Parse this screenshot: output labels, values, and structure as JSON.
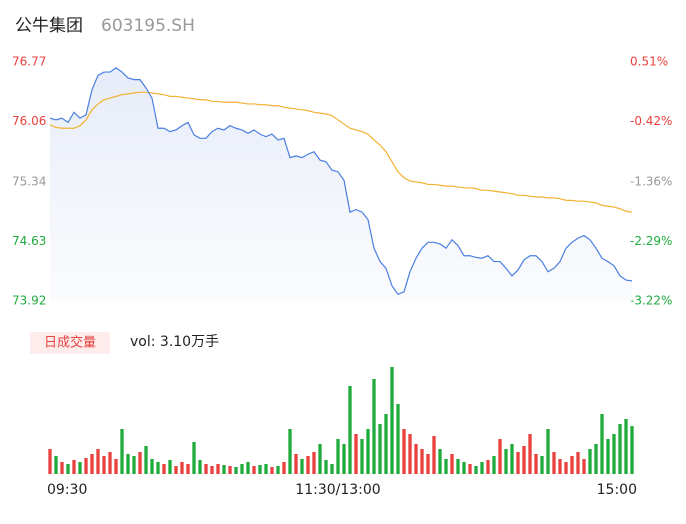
{
  "chart_data": {
    "type": "intraday",
    "title": "公牛集团",
    "subtitle": "603195.SH",
    "price": {
      "name": "price",
      "color": "#4a7fe0",
      "values": [
        76.1,
        76.08,
        76.1,
        76.05,
        76.17,
        76.1,
        76.14,
        76.44,
        76.61,
        76.65,
        76.65,
        76.7,
        76.65,
        76.58,
        76.56,
        76.56,
        76.46,
        76.34,
        75.98,
        75.98,
        75.94,
        75.96,
        76.01,
        76.05,
        75.9,
        75.86,
        75.86,
        75.94,
        75.98,
        75.96,
        76.01,
        75.98,
        75.96,
        75.92,
        75.96,
        75.91,
        75.88,
        75.91,
        75.84,
        75.86,
        75.63,
        75.65,
        75.63,
        75.67,
        75.7,
        75.6,
        75.58,
        75.48,
        75.46,
        75.36,
        74.98,
        75.01,
        74.98,
        74.89,
        74.55,
        74.39,
        74.31,
        74.1,
        74.0,
        74.03,
        74.27,
        74.43,
        74.55,
        74.62,
        74.62,
        74.6,
        74.55,
        74.65,
        74.58,
        74.46,
        74.46,
        74.44,
        74.43,
        74.46,
        74.39,
        74.39,
        74.31,
        74.22,
        74.29,
        74.41,
        74.46,
        74.46,
        74.39,
        74.27,
        74.31,
        74.39,
        74.55,
        74.62,
        74.67,
        74.7,
        74.65,
        74.55,
        74.43,
        74.39,
        74.34,
        74.22,
        74.17,
        74.16
      ]
    },
    "average": {
      "name": "average",
      "color": "#f2b233",
      "values": [
        76.02,
        75.99,
        75.98,
        75.98,
        75.98,
        76.01,
        76.08,
        76.2,
        76.27,
        76.32,
        76.34,
        76.36,
        76.38,
        76.39,
        76.4,
        76.41,
        76.41,
        76.4,
        76.39,
        76.38,
        76.36,
        76.36,
        76.35,
        76.34,
        76.33,
        76.32,
        76.32,
        76.3,
        76.3,
        76.29,
        76.29,
        76.29,
        76.28,
        76.27,
        76.27,
        76.26,
        76.26,
        76.25,
        76.25,
        76.23,
        76.22,
        76.21,
        76.2,
        76.19,
        76.17,
        76.16,
        76.15,
        76.13,
        76.08,
        76.03,
        75.98,
        75.96,
        75.94,
        75.91,
        75.84,
        75.78,
        75.7,
        75.58,
        75.46,
        75.39,
        75.35,
        75.34,
        75.33,
        75.31,
        75.31,
        75.3,
        75.29,
        75.29,
        75.28,
        75.27,
        75.27,
        75.26,
        75.24,
        75.24,
        75.23,
        75.22,
        75.21,
        75.2,
        75.18,
        75.18,
        75.17,
        75.16,
        75.16,
        75.15,
        75.15,
        75.14,
        75.12,
        75.12,
        75.11,
        75.11,
        75.1,
        75.09,
        75.06,
        75.05,
        75.04,
        75.02,
        74.99,
        74.98
      ]
    },
    "volume": {
      "name": "日成交量",
      "values": [
        25,
        18,
        12,
        10,
        14,
        12,
        16,
        20,
        25,
        18,
        22,
        15,
        45,
        20,
        18,
        22,
        28,
        15,
        12,
        10,
        14,
        8,
        12,
        10,
        32,
        14,
        10,
        8,
        10,
        9,
        8,
        7,
        10,
        12,
        8,
        9,
        10,
        7,
        8,
        12,
        45,
        20,
        15,
        18,
        22,
        30,
        14,
        10,
        35,
        30,
        88,
        40,
        35,
        45,
        95,
        50,
        60,
        107,
        70,
        45,
        40,
        30,
        25,
        20,
        38,
        25,
        15,
        20,
        15,
        12,
        10,
        8,
        12,
        14,
        18,
        35,
        25,
        30,
        22,
        28,
        40,
        20,
        18,
        45,
        22,
        15,
        12,
        18,
        22,
        15,
        25,
        30,
        60,
        35,
        40,
        50,
        55,
        48
      ]
    },
    "volume_label": "vol: 3.10万手",
    "up_color": "#e8413e",
    "down_color": "#1faa3c",
    "neutral_color": "#999999",
    "ylim": [
      73.92,
      76.77
    ],
    "yticks": [
      73.92,
      74.63,
      75.34,
      76.06,
      76.77
    ],
    "y2lim": [
      -3.22,
      0.51
    ],
    "y2ticks": [
      {
        "value": -3.22,
        "label": "-3.22%"
      },
      {
        "value": -2.29,
        "label": "-2.29%"
      },
      {
        "value": -1.36,
        "label": "-1.36%"
      },
      {
        "value": -0.42,
        "label": "-0.42%"
      },
      {
        "value": 0.51,
        "label": "0.51%"
      }
    ],
    "xticks": [
      {
        "value": 0,
        "label": "09:30"
      },
      {
        "value": 48,
        "label": "11:30/13:00"
      },
      {
        "value": 97,
        "label": "15:00"
      }
    ]
  }
}
